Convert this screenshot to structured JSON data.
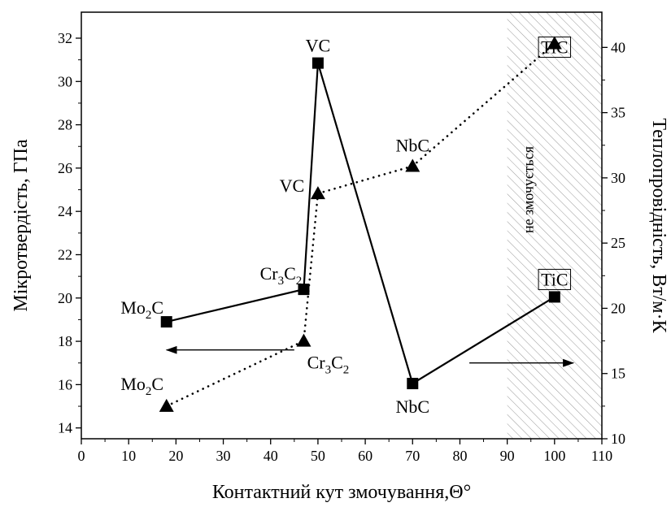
{
  "chart_data": {
    "type": "line",
    "xlabel": "Контактний кут змочування,Θ°",
    "ylabel_left": "Мікротвердість, ГПа",
    "ylabel_right": "Теплопровідність, Вт/м·К",
    "xlim": [
      0,
      110
    ],
    "ylim_left": [
      13.5,
      33.2
    ],
    "ylim_right": [
      10,
      42.7
    ],
    "x_ticks": [
      0,
      10,
      20,
      30,
      40,
      50,
      60,
      70,
      80,
      90,
      100,
      110
    ],
    "y_ticks_left": [
      14,
      16,
      18,
      20,
      22,
      24,
      26,
      28,
      30,
      32
    ],
    "y_ticks_right": [
      10,
      15,
      20,
      25,
      30,
      35,
      40
    ],
    "grid": false,
    "legend": "none",
    "series": [
      {
        "axis": "left",
        "marker": "square",
        "line_style": "solid",
        "points": [
          {
            "label_parts": [
              [
                "Mo",
                false
              ],
              [
                "2",
                true
              ],
              [
                "C",
                false
              ]
            ],
            "x": 18,
            "y": 18.9
          },
          {
            "label_parts": [
              [
                "Cr",
                false
              ],
              [
                "3",
                true
              ],
              [
                "C",
                false
              ],
              [
                "2",
                true
              ]
            ],
            "x": 47,
            "y": 20.4
          },
          {
            "label_parts": [
              [
                "VC",
                false
              ]
            ],
            "x": 50,
            "y": 30.85
          },
          {
            "label_parts": [
              [
                "NbC",
                false
              ]
            ],
            "x": 70,
            "y": 16.05
          },
          {
            "label_parts": [
              [
                "TiC",
                false
              ]
            ],
            "x": 100,
            "y": 20.05,
            "boxed": true
          }
        ]
      },
      {
        "axis": "right",
        "marker": "triangle",
        "line_style": "dotted",
        "points": [
          {
            "label_parts": [
              [
                "Mo",
                false
              ],
              [
                "2",
                true
              ],
              [
                "C",
                false
              ]
            ],
            "x": 18,
            "y": 12.5
          },
          {
            "label_parts": [
              [
                "Cr",
                false
              ],
              [
                "3",
                true
              ],
              [
                "C",
                false
              ],
              [
                "2",
                true
              ]
            ],
            "x": 47,
            "y": 17.5
          },
          {
            "label_parts": [
              [
                "VC",
                false
              ]
            ],
            "x": 50,
            "y": 28.8
          },
          {
            "label_parts": [
              [
                "NbC",
                false
              ]
            ],
            "x": 70,
            "y": 30.9
          },
          {
            "label_parts": [
              [
                "TiC",
                false
              ]
            ],
            "x": 100,
            "y": 40.3,
            "boxed": true
          }
        ]
      }
    ],
    "annotations": {
      "shaded_region_x": [
        90,
        110
      ],
      "shaded_region_label": "не змочується",
      "arrow_left_x": [
        45,
        18
      ],
      "arrow_left_y": 17.6,
      "arrow_right_x": [
        82,
        104
      ],
      "arrow_right_y": 17.0
    }
  }
}
